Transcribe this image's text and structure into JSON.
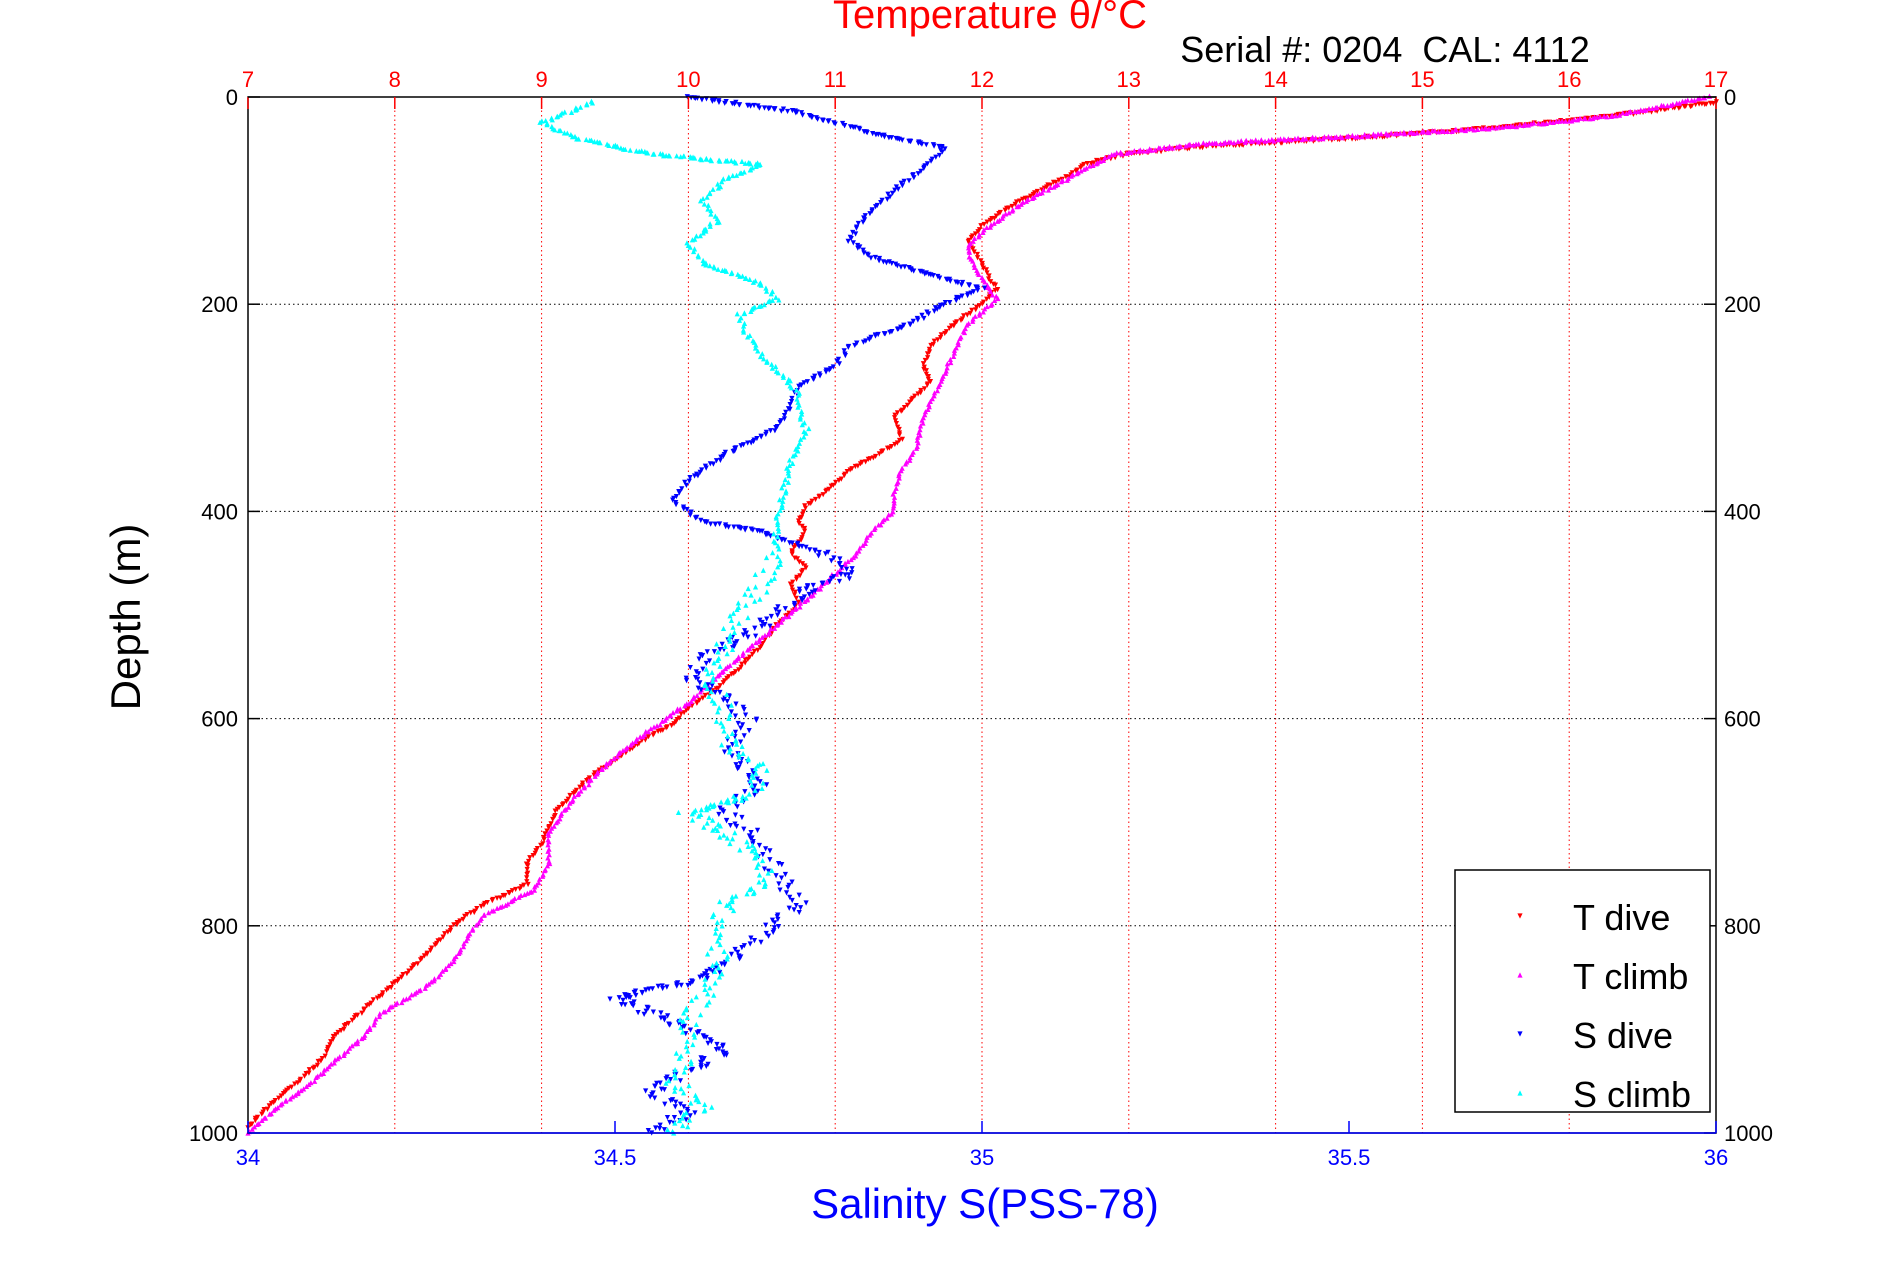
{
  "figure": {
    "serial_text": "Serial #: 0204  CAL: 4112"
  },
  "colors": {
    "temperature_axis": "#ff0000",
    "salinity_axis": "#0000ff",
    "t_dive": "#ff0000",
    "t_climb": "#ff00ff",
    "s_dive": "#0000ff",
    "s_climb": "#00ffff",
    "grid_temperature": "#ff0000",
    "grid_depth": "#000000"
  },
  "chart_data": {
    "type": "scatter",
    "title": "Temperature θ/°C",
    "xlabel": "Salinity S(PSS-78)",
    "ylabel": "Depth (m)",
    "x_top": {
      "label": "Temperature θ/°C",
      "range": [
        7,
        17
      ],
      "ticks": [
        7,
        8,
        9,
        10,
        11,
        12,
        13,
        14,
        15,
        16,
        17
      ]
    },
    "x_bottom": {
      "label": "Salinity S(PSS-78)",
      "range": [
        34,
        36
      ],
      "ticks": [
        34,
        34.5,
        35,
        35.5,
        36
      ],
      "tick_labels": [
        "34",
        "34.5",
        "35",
        "35.5",
        "36"
      ]
    },
    "y": {
      "label": "Depth (m)",
      "range": [
        0,
        1000
      ],
      "reversed": true,
      "ticks": [
        0,
        200,
        400,
        600,
        800,
        1000
      ]
    },
    "grid": true,
    "legend_position": "bottom-right",
    "series": [
      {
        "name": "T dive",
        "axis": "temperature",
        "marker": "triangle-down",
        "points": [
          [
            17.0,
            5
          ],
          [
            16.5,
            15
          ],
          [
            15.5,
            30
          ],
          [
            14.5,
            40
          ],
          [
            13.5,
            48
          ],
          [
            13.0,
            55
          ],
          [
            12.9,
            58
          ],
          [
            12.7,
            65
          ],
          [
            12.6,
            75
          ],
          [
            12.4,
            90
          ],
          [
            12.2,
            105
          ],
          [
            12.0,
            125
          ],
          [
            11.9,
            140
          ],
          [
            12.0,
            160
          ],
          [
            12.05,
            175
          ],
          [
            12.1,
            185
          ],
          [
            12.0,
            200
          ],
          [
            11.8,
            220
          ],
          [
            11.65,
            240
          ],
          [
            11.6,
            260
          ],
          [
            11.65,
            275
          ],
          [
            11.5,
            295
          ],
          [
            11.4,
            310
          ],
          [
            11.45,
            330
          ],
          [
            11.3,
            345
          ],
          [
            11.1,
            360
          ],
          [
            10.95,
            380
          ],
          [
            10.8,
            395
          ],
          [
            10.75,
            410
          ],
          [
            10.8,
            420
          ],
          [
            10.7,
            440
          ],
          [
            10.8,
            455
          ],
          [
            10.7,
            470
          ],
          [
            10.75,
            490
          ],
          [
            10.6,
            510
          ],
          [
            10.5,
            530
          ],
          [
            10.35,
            550
          ],
          [
            10.2,
            570
          ],
          [
            10.0,
            590
          ],
          [
            9.9,
            605
          ],
          [
            9.7,
            620
          ],
          [
            9.5,
            640
          ],
          [
            9.3,
            660
          ],
          [
            9.1,
            690
          ],
          [
            9.0,
            720
          ],
          [
            8.9,
            740
          ],
          [
            8.9,
            760
          ],
          [
            8.6,
            780
          ],
          [
            8.4,
            800
          ],
          [
            8.3,
            815
          ],
          [
            8.2,
            830
          ],
          [
            8.0,
            855
          ],
          [
            7.8,
            880
          ],
          [
            7.6,
            905
          ],
          [
            7.5,
            930
          ],
          [
            7.3,
            955
          ],
          [
            7.1,
            980
          ],
          [
            7.0,
            995
          ]
        ]
      },
      {
        "name": "T climb",
        "axis": "temperature",
        "marker": "triangle-up",
        "points": [
          [
            16.95,
            0
          ],
          [
            16.3,
            18
          ],
          [
            15.5,
            30
          ],
          [
            14.5,
            38
          ],
          [
            13.5,
            45
          ],
          [
            12.9,
            55
          ],
          [
            12.7,
            70
          ],
          [
            12.5,
            85
          ],
          [
            12.3,
            100
          ],
          [
            12.0,
            130
          ],
          [
            11.9,
            145
          ],
          [
            11.95,
            165
          ],
          [
            12.1,
            195
          ],
          [
            11.9,
            220
          ],
          [
            11.8,
            250
          ],
          [
            11.7,
            280
          ],
          [
            11.6,
            310
          ],
          [
            11.55,
            340
          ],
          [
            11.45,
            360
          ],
          [
            11.4,
            380
          ],
          [
            11.4,
            400
          ],
          [
            11.25,
            420
          ],
          [
            11.15,
            440
          ],
          [
            11.0,
            460
          ],
          [
            10.85,
            480
          ],
          [
            10.6,
            510
          ],
          [
            10.35,
            540
          ],
          [
            10.15,
            565
          ],
          [
            10.0,
            585
          ],
          [
            9.8,
            605
          ],
          [
            9.6,
            625
          ],
          [
            9.4,
            650
          ],
          [
            9.2,
            680
          ],
          [
            9.05,
            710
          ],
          [
            9.05,
            740
          ],
          [
            8.95,
            765
          ],
          [
            8.6,
            790
          ],
          [
            8.5,
            810
          ],
          [
            8.4,
            835
          ],
          [
            8.2,
            860
          ],
          [
            7.9,
            885
          ],
          [
            7.8,
            905
          ],
          [
            7.6,
            930
          ],
          [
            7.4,
            955
          ],
          [
            7.2,
            975
          ],
          [
            7.0,
            1000
          ]
        ]
      },
      {
        "name": "S dive",
        "axis": "salinity",
        "marker": "triangle-down",
        "points": [
          [
            34.6,
            0
          ],
          [
            34.75,
            15
          ],
          [
            34.85,
            35
          ],
          [
            34.95,
            50
          ],
          [
            34.92,
            70
          ],
          [
            34.88,
            90
          ],
          [
            34.85,
            110
          ],
          [
            34.83,
            125
          ],
          [
            34.82,
            140
          ],
          [
            34.85,
            155
          ],
          [
            34.92,
            170
          ],
          [
            35.0,
            185
          ],
          [
            34.95,
            200
          ],
          [
            34.9,
            220
          ],
          [
            34.82,
            240
          ],
          [
            34.8,
            260
          ],
          [
            34.75,
            280
          ],
          [
            34.74,
            300
          ],
          [
            34.72,
            320
          ],
          [
            34.65,
            345
          ],
          [
            34.6,
            370
          ],
          [
            34.58,
            390
          ],
          [
            34.62,
            410
          ],
          [
            34.7,
            420
          ],
          [
            34.78,
            440
          ],
          [
            34.82,
            460
          ],
          [
            34.75,
            480
          ],
          [
            34.72,
            500
          ],
          [
            34.68,
            520
          ],
          [
            34.62,
            540
          ],
          [
            34.6,
            560
          ],
          [
            34.65,
            580
          ],
          [
            34.68,
            600
          ],
          [
            34.65,
            630
          ],
          [
            34.7,
            660
          ],
          [
            34.65,
            690
          ],
          [
            34.7,
            720
          ],
          [
            34.72,
            750
          ],
          [
            34.75,
            780
          ],
          [
            34.7,
            810
          ],
          [
            34.65,
            840
          ],
          [
            34.6,
            855
          ],
          [
            34.5,
            870
          ],
          [
            34.55,
            885
          ],
          [
            34.6,
            900
          ],
          [
            34.65,
            920
          ],
          [
            34.6,
            940
          ],
          [
            34.55,
            960
          ],
          [
            34.6,
            980
          ],
          [
            34.55,
            1000
          ]
        ]
      },
      {
        "name": "S climb",
        "axis": "salinity",
        "marker": "triangle-up",
        "points": [
          [
            34.47,
            5
          ],
          [
            34.4,
            25
          ],
          [
            34.45,
            40
          ],
          [
            34.55,
            55
          ],
          [
            34.7,
            65
          ],
          [
            34.65,
            80
          ],
          [
            34.62,
            100
          ],
          [
            34.64,
            120
          ],
          [
            34.6,
            140
          ],
          [
            34.62,
            160
          ],
          [
            34.7,
            180
          ],
          [
            34.72,
            195
          ],
          [
            34.67,
            210
          ],
          [
            34.68,
            230
          ],
          [
            34.7,
            250
          ],
          [
            34.73,
            270
          ],
          [
            34.75,
            285
          ],
          [
            34.75,
            300
          ],
          [
            34.76,
            320
          ],
          [
            34.74,
            350
          ],
          [
            34.73,
            380
          ],
          [
            34.72,
            410
          ],
          [
            34.72,
            440
          ],
          [
            34.7,
            470
          ],
          [
            34.67,
            500
          ],
          [
            34.65,
            530
          ],
          [
            34.63,
            560
          ],
          [
            34.65,
            590
          ],
          [
            34.65,
            620
          ],
          [
            34.7,
            650
          ],
          [
            34.68,
            675
          ],
          [
            34.6,
            690
          ],
          [
            34.65,
            710
          ],
          [
            34.7,
            735
          ],
          [
            34.7,
            760
          ],
          [
            34.65,
            780
          ],
          [
            34.64,
            800
          ],
          [
            34.64,
            830
          ],
          [
            34.63,
            860
          ],
          [
            34.6,
            890
          ],
          [
            34.6,
            920
          ],
          [
            34.58,
            950
          ],
          [
            34.62,
            975
          ],
          [
            34.58,
            1000
          ]
        ]
      }
    ]
  }
}
